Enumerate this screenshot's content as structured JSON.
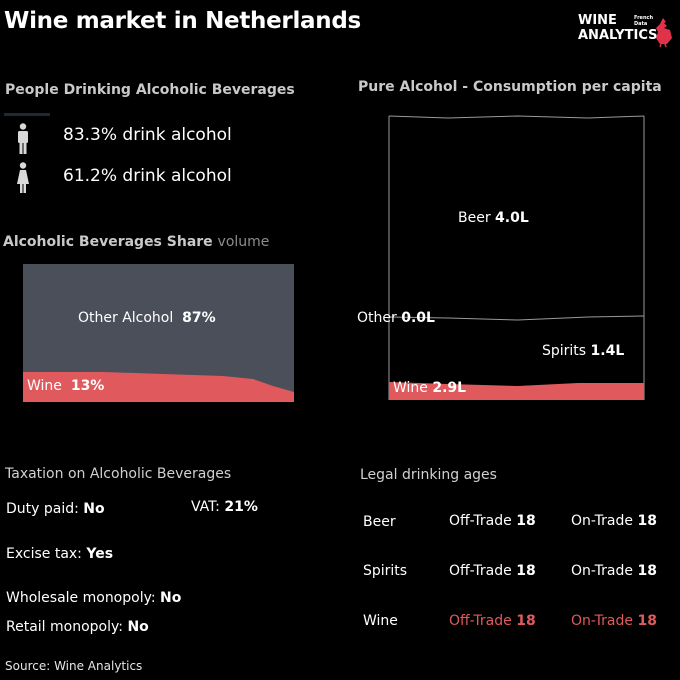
{
  "title": "Wine market in Netherlands",
  "logo": {
    "line1": "WINE",
    "line2": "ANALYTICS",
    "tag1": "French",
    "tag2": "Data"
  },
  "people": {
    "heading": "People Drinking Alcoholic Beverages",
    "male": {
      "value": "83.3%",
      "label": "drink alcohol",
      "icon": "male-person-icon"
    },
    "female": {
      "value": "61.2%",
      "label": "drink alcohol",
      "icon": "female-person-icon"
    }
  },
  "share": {
    "heading": "Alcoholic Beverages Share",
    "heading_light": "volume",
    "other_label": "Other Alcohol",
    "other_value": "87%",
    "wine_label": "Wine",
    "wine_value": "13%"
  },
  "pure": {
    "heading": "Pure Alcohol - Consumption per capita",
    "beer_label": "Beer",
    "beer_value": "4.0L",
    "other_label": "Other",
    "other_value": "0.0L",
    "spirits_label": "Spirits",
    "spirits_value": "1.4L",
    "wine_label": "Wine",
    "wine_value": "2.9L"
  },
  "taxation": {
    "heading": "Taxation on Alcoholic Beverages",
    "duty_label": "Duty paid:",
    "duty_value": "No",
    "vat_label": "VAT:",
    "vat_value": "21%",
    "excise_label": "Excise tax:",
    "excise_value": "Yes",
    "wholesale_label": "Wholesale monopoly:",
    "wholesale_value": "No",
    "retail_label": "Retail monopoly:",
    "retail_value": "No"
  },
  "ages": {
    "heading": "Legal drinking ages",
    "rows": [
      {
        "name": "Beer",
        "off_label": "Off-Trade",
        "off": "18",
        "on_label": "On-Trade",
        "on": "18"
      },
      {
        "name": "Spirits",
        "off_label": "Off-Trade",
        "off": "18",
        "on_label": "On-Trade",
        "on": "18"
      },
      {
        "name": "Wine",
        "off_label": "Off-Trade",
        "off": "18",
        "on_label": "On-Trade",
        "on": "18"
      }
    ]
  },
  "source": "Source: Wine Analytics",
  "colors": {
    "wine": "#e05a5d",
    "other": "#4a4f5a",
    "text": "#ffffff",
    "heading": "#c9c9c9"
  }
}
